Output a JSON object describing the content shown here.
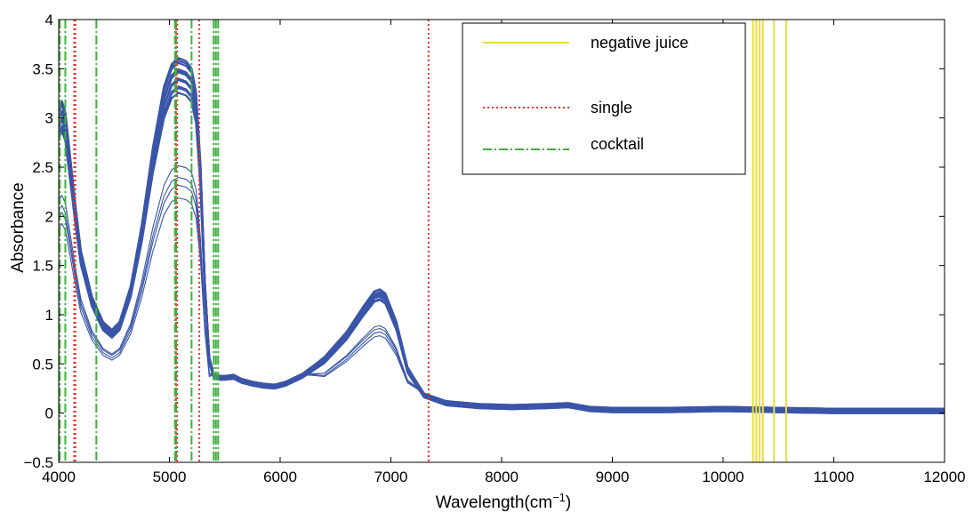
{
  "chart_data": {
    "type": "line",
    "title": "",
    "xlabel_main": "Wavelength(cm",
    "xlabel_sup": "−1",
    "xlabel_end": ")",
    "ylabel": "Absorbance",
    "xlim": [
      4000,
      12000
    ],
    "ylim": [
      -0.5,
      4
    ],
    "xticks": [
      4000,
      5000,
      6000,
      7000,
      8000,
      9000,
      10000,
      11000,
      12000
    ],
    "yticks": [
      -0.5,
      0,
      0.5,
      1,
      1.5,
      2,
      2.5,
      3,
      3.5,
      4
    ],
    "xtick_labels": [
      "4000",
      "5000",
      "6000",
      "7000",
      "8000",
      "9000",
      "10000",
      "11000",
      "12000"
    ],
    "ytick_labels": [
      "−0.5",
      "0",
      "0.5",
      "1",
      "1.5",
      "2",
      "2.5",
      "3",
      "3.5",
      "4"
    ],
    "grid": false,
    "legend_position": "top-right",
    "legend": [
      {
        "label": "negative juice",
        "color": "#e8e03a",
        "style": "solid"
      },
      {
        "label": "single",
        "color": "#e8302a",
        "style": "dotted"
      },
      {
        "label": "cocktail",
        "color": "#3db03a",
        "style": "dashdot"
      }
    ],
    "spectrum_color": "#3a55a8",
    "spectra_profile": {
      "x": [
        4000,
        4030,
        4060,
        4100,
        4150,
        4200,
        4300,
        4400,
        4480,
        4550,
        4650,
        4750,
        4850,
        4950,
        5020,
        5080,
        5150,
        5200,
        5240,
        5280,
        5320,
        5360,
        5400,
        5450,
        5500,
        5580,
        5650,
        5750,
        5850,
        5950,
        6050,
        6200,
        6400,
        6600,
        6750,
        6850,
        6900,
        6950,
        7050,
        7150,
        7300,
        7500,
        7800,
        8100,
        8400,
        8600,
        8800,
        9000,
        9500,
        10000,
        10500,
        11000,
        11500,
        12000
      ],
      "y": [
        2.98,
        3.06,
        2.95,
        2.55,
        2.05,
        1.6,
        1.15,
        0.9,
        0.82,
        0.9,
        1.25,
        1.85,
        2.6,
        3.2,
        3.42,
        3.48,
        3.45,
        3.38,
        3.15,
        2.45,
        1.3,
        0.55,
        0.38,
        0.36,
        0.36,
        0.37,
        0.33,
        0.3,
        0.28,
        0.27,
        0.3,
        0.38,
        0.55,
        0.8,
        1.05,
        1.2,
        1.22,
        1.18,
        0.9,
        0.45,
        0.18,
        0.1,
        0.07,
        0.06,
        0.07,
        0.08,
        0.04,
        0.03,
        0.03,
        0.04,
        0.03,
        0.02,
        0.02,
        0.02
      ]
    },
    "spectra_scales": [
      0.95,
      0.97,
      0.98,
      0.99,
      1.0,
      1.01,
      1.02,
      1.03,
      1.04,
      0.93,
      0.96,
      1.0,
      0.66,
      0.68,
      0.62,
      0.72
    ],
    "spectra_offsets": [
      0.0,
      0.01,
      -0.01,
      0.02,
      0.0,
      -0.02,
      0.01,
      0.0,
      -0.01,
      0.02,
      -0.02,
      0.01,
      0.02,
      0.03,
      0.03,
      0.01
    ],
    "vertical_lines": {
      "negative_juice": [
        10270,
        10300,
        10330,
        10360,
        10460,
        10570
      ],
      "single": [
        4000,
        4140,
        4150,
        5060,
        5070,
        5270,
        7340
      ],
      "cocktail": [
        4010,
        4060,
        4340,
        5050,
        5060,
        5200,
        5400,
        5420,
        5440
      ]
    }
  }
}
